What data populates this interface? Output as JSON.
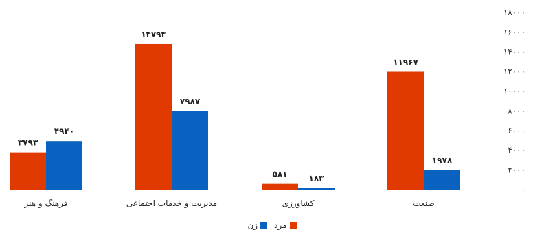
{
  "chart_data": {
    "type": "bar",
    "categories": [
      "صنعت",
      "کشاورزی",
      "مدیریت و خدمات اجتماعی",
      "فرهنگ و هنر"
    ],
    "series": [
      {
        "name": "مرد",
        "color": "#e03a00",
        "values": [
          11967,
          581,
          14794,
          3793
        ],
        "labels": [
          "۱۱۹۶۷",
          "۵۸۱",
          "۱۴۷۹۴",
          "۳۷۹۳"
        ]
      },
      {
        "name": "زن",
        "color": "#0a62c0",
        "values": [
          1978,
          183,
          7987,
          4940
        ],
        "labels": [
          "۱۹۷۸",
          "۱۸۳",
          "۷۹۸۷",
          "۴۹۴۰"
        ]
      }
    ],
    "ylim": [
      0,
      18000
    ],
    "yticks": [
      0,
      2000,
      4000,
      6000,
      8000,
      10000,
      12000,
      14000,
      16000,
      18000
    ],
    "ytick_labels": [
      "۰",
      "۲۰۰۰",
      "۴۰۰۰",
      "۶۰۰۰",
      "۸۰۰۰",
      "۱۰۰۰۰",
      "۱۲۰۰۰",
      "۱۴۰۰۰",
      "۱۶۰۰۰",
      "۱۸۰۰۰"
    ],
    "yaxis_side": "right",
    "grid": false,
    "legend_position": "bottom"
  }
}
